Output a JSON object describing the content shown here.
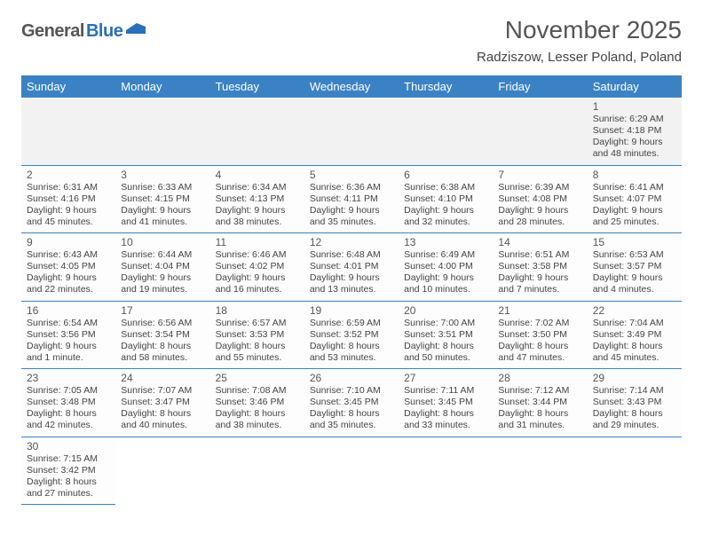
{
  "logo": {
    "text1": "General",
    "text2": "Blue"
  },
  "title": "November 2025",
  "location": "Radziszow, Lesser Poland, Poland",
  "colors": {
    "header_bg": "#3b82c4",
    "header_fg": "#ffffff",
    "rule": "#3b82c4",
    "text": "#333333",
    "muted_bg": "#f2f2f2"
  },
  "daynames": [
    "Sunday",
    "Monday",
    "Tuesday",
    "Wednesday",
    "Thursday",
    "Friday",
    "Saturday"
  ],
  "weeks": [
    [
      null,
      null,
      null,
      null,
      null,
      null,
      {
        "n": "1",
        "sr": "6:29 AM",
        "ss": "4:18 PM",
        "dl": "9 hours and 48 minutes."
      }
    ],
    [
      {
        "n": "2",
        "sr": "6:31 AM",
        "ss": "4:16 PM",
        "dl": "9 hours and 45 minutes."
      },
      {
        "n": "3",
        "sr": "6:33 AM",
        "ss": "4:15 PM",
        "dl": "9 hours and 41 minutes."
      },
      {
        "n": "4",
        "sr": "6:34 AM",
        "ss": "4:13 PM",
        "dl": "9 hours and 38 minutes."
      },
      {
        "n": "5",
        "sr": "6:36 AM",
        "ss": "4:11 PM",
        "dl": "9 hours and 35 minutes."
      },
      {
        "n": "6",
        "sr": "6:38 AM",
        "ss": "4:10 PM",
        "dl": "9 hours and 32 minutes."
      },
      {
        "n": "7",
        "sr": "6:39 AM",
        "ss": "4:08 PM",
        "dl": "9 hours and 28 minutes."
      },
      {
        "n": "8",
        "sr": "6:41 AM",
        "ss": "4:07 PM",
        "dl": "9 hours and 25 minutes."
      }
    ],
    [
      {
        "n": "9",
        "sr": "6:43 AM",
        "ss": "4:05 PM",
        "dl": "9 hours and 22 minutes."
      },
      {
        "n": "10",
        "sr": "6:44 AM",
        "ss": "4:04 PM",
        "dl": "9 hours and 19 minutes."
      },
      {
        "n": "11",
        "sr": "6:46 AM",
        "ss": "4:02 PM",
        "dl": "9 hours and 16 minutes."
      },
      {
        "n": "12",
        "sr": "6:48 AM",
        "ss": "4:01 PM",
        "dl": "9 hours and 13 minutes."
      },
      {
        "n": "13",
        "sr": "6:49 AM",
        "ss": "4:00 PM",
        "dl": "9 hours and 10 minutes."
      },
      {
        "n": "14",
        "sr": "6:51 AM",
        "ss": "3:58 PM",
        "dl": "9 hours and 7 minutes."
      },
      {
        "n": "15",
        "sr": "6:53 AM",
        "ss": "3:57 PM",
        "dl": "9 hours and 4 minutes."
      }
    ],
    [
      {
        "n": "16",
        "sr": "6:54 AM",
        "ss": "3:56 PM",
        "dl": "9 hours and 1 minute."
      },
      {
        "n": "17",
        "sr": "6:56 AM",
        "ss": "3:54 PM",
        "dl": "8 hours and 58 minutes."
      },
      {
        "n": "18",
        "sr": "6:57 AM",
        "ss": "3:53 PM",
        "dl": "8 hours and 55 minutes."
      },
      {
        "n": "19",
        "sr": "6:59 AM",
        "ss": "3:52 PM",
        "dl": "8 hours and 53 minutes."
      },
      {
        "n": "20",
        "sr": "7:00 AM",
        "ss": "3:51 PM",
        "dl": "8 hours and 50 minutes."
      },
      {
        "n": "21",
        "sr": "7:02 AM",
        "ss": "3:50 PM",
        "dl": "8 hours and 47 minutes."
      },
      {
        "n": "22",
        "sr": "7:04 AM",
        "ss": "3:49 PM",
        "dl": "8 hours and 45 minutes."
      }
    ],
    [
      {
        "n": "23",
        "sr": "7:05 AM",
        "ss": "3:48 PM",
        "dl": "8 hours and 42 minutes."
      },
      {
        "n": "24",
        "sr": "7:07 AM",
        "ss": "3:47 PM",
        "dl": "8 hours and 40 minutes."
      },
      {
        "n": "25",
        "sr": "7:08 AM",
        "ss": "3:46 PM",
        "dl": "8 hours and 38 minutes."
      },
      {
        "n": "26",
        "sr": "7:10 AM",
        "ss": "3:45 PM",
        "dl": "8 hours and 35 minutes."
      },
      {
        "n": "27",
        "sr": "7:11 AM",
        "ss": "3:45 PM",
        "dl": "8 hours and 33 minutes."
      },
      {
        "n": "28",
        "sr": "7:12 AM",
        "ss": "3:44 PM",
        "dl": "8 hours and 31 minutes."
      },
      {
        "n": "29",
        "sr": "7:14 AM",
        "ss": "3:43 PM",
        "dl": "8 hours and 29 minutes."
      }
    ],
    [
      {
        "n": "30",
        "sr": "7:15 AM",
        "ss": "3:42 PM",
        "dl": "8 hours and 27 minutes."
      },
      null,
      null,
      null,
      null,
      null,
      null
    ]
  ],
  "labels": {
    "sunrise": "Sunrise:",
    "sunset": "Sunset:",
    "daylight": "Daylight:"
  }
}
